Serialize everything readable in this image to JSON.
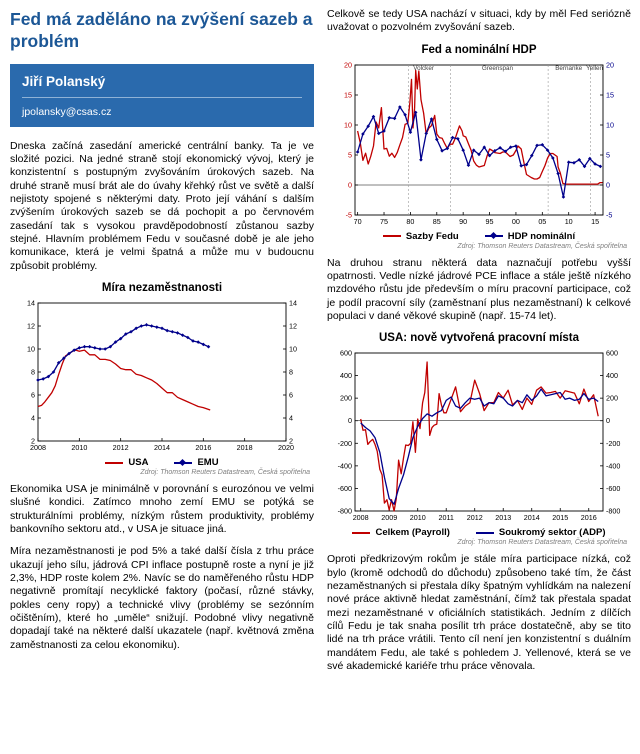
{
  "article": {
    "title": "Fed má zaděláno na zvýšení sazeb a problém",
    "author": {
      "name": "Jiří Polanský",
      "email": "jpolansky@csas.cz"
    }
  },
  "left": {
    "p1": "Dneska začíná zasedání americké centrální banky. Ta je ve složité pozici. Na jedné straně stojí ekonomický vývoj, který je konzistentní s postupným zvyšováním úrokových sazeb. Na druhé straně musí brát ale do úvahy křehký růst ve světě a další nejistoty spojené s některými daty. Proto její váhání s dalším zvýšením úrokových sazeb se dá pochopit a po červnovém zasedání tak s vysokou pravděpodobností zůstanou sazby stejné. Hlavním problémem Fedu v současné době je ale jeho komunikace, která je velmi špatná a může mu v budoucnu způsobit problémy.",
    "p2": "Ekonomika USA je minimálně v porovnání s eurozónou ve velmi slušné kondici. Zatímco mnoho zemí EMU se potýká se strukturálními problémy, nízkým růstem produktivity, problémy bankovního sektoru atd., v USA je situace jiná.",
    "p3": "Míra nezaměstnanosti je pod 5% a také další čísla z trhu práce ukazují jeho sílu, jádrová CPI inflace postupně roste a nyní je již 2,3%, HDP roste kolem 2%. Navíc se do naměřeného růstu HDP negativně promítají necyklické faktory (počasí, různé stávky, pokles ceny ropy) a technické vlivy (problémy se sezónním očištěním), které ho „uměle“ snižují. Podobné vlivy negativně dopadají také na některé další ukazatele (např. květnová změna zaměstnanosti za celou ekonomiku)."
  },
  "right": {
    "p1": "Celkově se tedy USA nachází v situaci, kdy by měl Fed seriózně uvažovat o pozvolném zvyšování sazeb.",
    "p2": "Na druhou stranu některá data naznačují potřebu vyšší opatrnosti. Vedle nízké jádrové PCE inflace a stále ještě nízkého mzdového růstu jde především o míru pracovní participace, což je podíl pracovní síly (zaměstnaní plus nezaměstnaní) k celkové populaci v dané věkové skupině (např. 15-74 let).",
    "p3": "Oproti předkrizovým rokům je stále míra participace nízká, což bylo (kromě odchodů do důchodu) způsobeno také tím, že část nezaměstnaných si přestala díky špatným vyhlídkám na nalezení nové práce aktivně hledat zaměstnání, čímž tak přestala spadat mezi nezaměstnané v oficiálních statistikách. Jedním z dílčích cílů Fedu je tak snaha posílit trh práce dostatečně, aby se tito lidé na trh práce vrátili. Tento cíl není jen konzistentní s duálním mandátem Fedu, ale také s pohledem J. Yellenové, která se ve své akademické kariéře trhu práce věnovala."
  },
  "chart_data": [
    {
      "type": "line",
      "title": "Míra nezaměstnanosti",
      "source": "Zdroj: Thomson Reuters Datastream, Česká spořitelna",
      "xlim": [
        2008,
        2020
      ],
      "ylim": [
        2,
        14
      ],
      "xticks": [
        2008,
        2010,
        2012,
        2014,
        2016,
        2018,
        2020
      ],
      "xtick_labels": [
        "2008",
        "2010",
        "2012",
        "2014",
        "2016",
        "2018",
        "2020"
      ],
      "yticks": [
        2,
        4,
        6,
        8,
        10,
        12,
        14
      ],
      "grid": false,
      "legend_position": "bottom",
      "series": [
        {
          "name": "USA",
          "color": "#c00000",
          "marker": "none",
          "x": [
            2008.0,
            2008.17,
            2008.33,
            2008.5,
            2008.67,
            2008.83,
            2009.0,
            2009.17,
            2009.33,
            2009.5,
            2009.67,
            2009.83,
            2010.0,
            2010.25,
            2010.5,
            2010.75,
            2011.0,
            2011.25,
            2011.5,
            2011.75,
            2012.0,
            2012.25,
            2012.5,
            2012.75,
            2013.0,
            2013.25,
            2013.5,
            2013.75,
            2014.0,
            2014.25,
            2014.5,
            2014.75,
            2015.0,
            2015.25,
            2015.5,
            2015.75,
            2016.0,
            2016.33
          ],
          "y": [
            5.0,
            5.1,
            5.4,
            5.8,
            6.2,
            6.8,
            7.8,
            8.7,
            9.4,
            9.6,
            9.8,
            9.9,
            9.8,
            9.9,
            9.5,
            9.5,
            9.1,
            9.1,
            9.0,
            8.7,
            8.3,
            8.2,
            8.2,
            7.8,
            7.7,
            7.5,
            7.3,
            7.0,
            6.6,
            6.2,
            6.2,
            5.8,
            5.6,
            5.4,
            5.2,
            5.0,
            4.9,
            4.7
          ]
        },
        {
          "name": "EMU",
          "color": "#00008b",
          "marker": "diamond",
          "x": [
            2008.0,
            2008.25,
            2008.5,
            2008.75,
            2009.0,
            2009.25,
            2009.5,
            2009.75,
            2010.0,
            2010.25,
            2010.5,
            2010.75,
            2011.0,
            2011.25,
            2011.5,
            2011.75,
            2012.0,
            2012.25,
            2012.5,
            2012.75,
            2013.0,
            2013.25,
            2013.5,
            2013.75,
            2014.0,
            2014.25,
            2014.5,
            2014.75,
            2015.0,
            2015.25,
            2015.5,
            2015.75,
            2016.0,
            2016.25
          ],
          "y": [
            7.3,
            7.4,
            7.6,
            8.0,
            8.8,
            9.2,
            9.6,
            9.9,
            10.1,
            10.2,
            10.2,
            10.1,
            10.0,
            10.0,
            10.2,
            10.6,
            10.9,
            11.3,
            11.5,
            11.8,
            12.0,
            12.1,
            12.0,
            11.9,
            11.8,
            11.6,
            11.5,
            11.4,
            11.2,
            11.0,
            10.7,
            10.6,
            10.4,
            10.2
          ]
        }
      ]
    },
    {
      "type": "line",
      "title": "Fed a nominální HDP",
      "source": "Zdroj: Thomson Reuters Datastream, Česká spořitelna",
      "xlim": [
        1969.5,
        2016.5
      ],
      "ylim": [
        -5,
        20
      ],
      "xticks": [
        1970,
        1975,
        1980,
        1985,
        1990,
        1995,
        2000,
        2005,
        2010,
        2015
      ],
      "xtick_labels": [
        "70",
        "75",
        "80",
        "85",
        "90",
        "95",
        "00",
        "05",
        "10",
        "15"
      ],
      "yticks": [
        -5,
        0,
        5,
        10,
        15,
        20
      ],
      "left_axis_color": "#c00000",
      "right_axis_color": "#00008b",
      "zero_line": true,
      "vlines": [
        1979.6,
        1987.6,
        2006.1,
        2014.1
      ],
      "annotations": [
        {
          "text": "Volcker",
          "x": 1982.5,
          "y": 19.2
        },
        {
          "text": "Greenspan",
          "x": 1996.5,
          "y": 19.2
        },
        {
          "text": "Bernanke",
          "x": 2010.0,
          "y": 19.2
        },
        {
          "text": "Yellen",
          "x": 2014.9,
          "y": 19.2
        }
      ],
      "series": [
        {
          "name": "Sazby Fedu",
          "color": "#c00000",
          "marker": "none",
          "x": [
            1970.0,
            1970.5,
            1971.0,
            1971.5,
            1972.0,
            1972.5,
            1973.0,
            1973.5,
            1974.0,
            1974.5,
            1975.0,
            1975.5,
            1976.0,
            1976.5,
            1977.0,
            1977.5,
            1978.0,
            1978.5,
            1979.0,
            1979.5,
            1979.9,
            1980.2,
            1980.5,
            1980.8,
            1981.0,
            1981.3,
            1981.6,
            1982.0,
            1982.5,
            1983.0,
            1983.5,
            1984.0,
            1984.6,
            1985.0,
            1985.5,
            1986.0,
            1986.5,
            1987.0,
            1987.5,
            1988.0,
            1988.5,
            1989.0,
            1989.3,
            1989.8,
            1990.0,
            1990.5,
            1991.0,
            1991.5,
            1992.0,
            1992.5,
            1993.0,
            1994.0,
            1994.5,
            1995.0,
            1995.5,
            1996.0,
            1997.0,
            1997.5,
            1998.0,
            1998.9,
            1999.5,
            2000.0,
            2000.4,
            2001.0,
            2001.5,
            2002.0,
            2002.9,
            2003.5,
            2004.0,
            2004.5,
            2005.0,
            2005.5,
            2006.0,
            2006.5,
            2007.0,
            2007.8,
            2008.0,
            2008.4,
            2008.9,
            2009.5,
            2010.5,
            2011.5,
            2012.5,
            2013.5,
            2014.5,
            2015.5,
            2015.95,
            2016.4
          ],
          "y": [
            9.0,
            7.0,
            4.1,
            5.3,
            3.5,
            4.8,
            6.5,
            10.5,
            9.5,
            12.9,
            6.0,
            6.1,
            4.8,
            5.3,
            4.6,
            5.4,
            6.7,
            7.9,
            10.1,
            10.3,
            13.8,
            17.6,
            9.5,
            12.8,
            19.1,
            16.0,
            19.0,
            14.2,
            12.0,
            8.5,
            9.5,
            9.9,
            11.6,
            8.5,
            7.9,
            7.8,
            6.9,
            6.1,
            6.8,
            6.8,
            7.8,
            9.1,
            9.85,
            9.0,
            8.2,
            8.0,
            6.9,
            5.8,
            4.0,
            3.3,
            3.0,
            3.25,
            4.75,
            6.0,
            5.75,
            5.4,
            5.25,
            5.5,
            5.5,
            4.75,
            5.0,
            5.75,
            6.5,
            6.0,
            3.75,
            1.75,
            1.25,
            1.0,
            1.0,
            1.25,
            2.25,
            3.25,
            4.5,
            5.25,
            5.25,
            4.75,
            3.0,
            2.0,
            0.25,
            0.15,
            0.15,
            0.15,
            0.15,
            0.15,
            0.15,
            0.15,
            0.4,
            0.4
          ]
        },
        {
          "name": "HDP nominální",
          "color": "#00008b",
          "marker": "diamond",
          "x": [
            1970,
            1971,
            1972,
            1973,
            1974,
            1975,
            1976,
            1977,
            1978,
            1979,
            1980,
            1981,
            1982,
            1983,
            1984,
            1985,
            1986,
            1987,
            1988,
            1989,
            1990,
            1991,
            1992,
            1993,
            1994,
            1995,
            1996,
            1997,
            1998,
            1999,
            2000,
            2001,
            2002,
            2003,
            2004,
            2005,
            2006,
            2007,
            2008,
            2009,
            2010,
            2011,
            2012,
            2013,
            2014,
            2015,
            2016
          ],
          "y": [
            5.5,
            8.5,
            9.8,
            11.4,
            8.6,
            9.0,
            11.2,
            11.1,
            13.0,
            11.7,
            8.8,
            12.1,
            4.2,
            8.6,
            11.0,
            7.6,
            5.7,
            6.1,
            7.9,
            7.7,
            5.8,
            3.3,
            5.8,
            5.1,
            6.3,
            4.9,
            5.7,
            6.2,
            5.6,
            6.3,
            6.5,
            3.2,
            3.4,
            4.9,
            6.6,
            6.7,
            5.8,
            4.5,
            1.9,
            -2.0,
            3.8,
            3.7,
            4.2,
            3.1,
            4.4,
            3.5,
            3.1
          ]
        }
      ]
    },
    {
      "type": "line",
      "title": "USA: nově vytvořená pracovní místa",
      "source": "Zdroj: Thomson Reuters Datastream, Česká spořitelna",
      "xlim": [
        2007.8,
        2016.5
      ],
      "ylim": [
        -800,
        600
      ],
      "xticks": [
        2008,
        2009,
        2010,
        2011,
        2012,
        2013,
        2014,
        2015,
        2016
      ],
      "xtick_labels": [
        "2008",
        "2009",
        "2010",
        "2011",
        "2012",
        "2013",
        "2014",
        "2015",
        "2016"
      ],
      "yticks": [
        -800,
        -600,
        -400,
        -200,
        0,
        200,
        400,
        600
      ],
      "zero_line": true,
      "series": [
        {
          "name": "Celkem (Payroll)",
          "color": "#c00000",
          "marker": "none",
          "x": [
            2008.0,
            2008.08,
            2008.17,
            2008.25,
            2008.33,
            2008.42,
            2008.5,
            2008.58,
            2008.67,
            2008.75,
            2008.83,
            2008.92,
            2009.0,
            2009.08,
            2009.17,
            2009.25,
            2009.33,
            2009.42,
            2009.5,
            2009.58,
            2009.67,
            2009.75,
            2009.83,
            2009.92,
            2010.0,
            2010.08,
            2010.17,
            2010.25,
            2010.33,
            2010.42,
            2010.5,
            2010.58,
            2010.67,
            2010.75,
            2010.83,
            2010.92,
            2011.0,
            2011.17,
            2011.33,
            2011.5,
            2011.67,
            2011.83,
            2012.0,
            2012.17,
            2012.33,
            2012.5,
            2012.67,
            2012.83,
            2013.0,
            2013.17,
            2013.33,
            2013.5,
            2013.67,
            2013.83,
            2014.0,
            2014.17,
            2014.33,
            2014.5,
            2014.67,
            2014.83,
            2015.0,
            2015.17,
            2015.33,
            2015.5,
            2015.67,
            2015.83,
            2016.0,
            2016.17,
            2016.33
          ],
          "y": [
            15,
            -85,
            -80,
            -210,
            -185,
            -165,
            -210,
            -270,
            -430,
            -480,
            -730,
            -700,
            -790,
            -700,
            -800,
            -690,
            -350,
            -470,
            -330,
            -215,
            -220,
            -200,
            -10,
            -280,
            15,
            -70,
            160,
            250,
            520,
            -130,
            -60,
            -40,
            -30,
            240,
            140,
            70,
            70,
            190,
            300,
            80,
            130,
            160,
            360,
            240,
            90,
            160,
            160,
            250,
            200,
            270,
            140,
            180,
            100,
            200,
            145,
            270,
            300,
            245,
            250,
            260,
            200,
            265,
            255,
            245,
            150,
            280,
            170,
            230,
            40
          ]
        },
        {
          "name": "Soukromý sektor (ADP)",
          "color": "#00008b",
          "marker": "none",
          "x": [
            2008.0,
            2008.17,
            2008.33,
            2008.5,
            2008.67,
            2008.83,
            2009.0,
            2009.17,
            2009.33,
            2009.5,
            2009.67,
            2009.83,
            2010.0,
            2010.17,
            2010.33,
            2010.5,
            2010.67,
            2010.83,
            2011.0,
            2011.17,
            2011.33,
            2011.5,
            2011.67,
            2011.83,
            2012.0,
            2012.17,
            2012.33,
            2012.5,
            2012.67,
            2012.83,
            2013.0,
            2013.17,
            2013.33,
            2013.5,
            2013.67,
            2013.83,
            2014.0,
            2014.17,
            2014.33,
            2014.5,
            2014.67,
            2014.83,
            2015.0,
            2015.17,
            2015.33,
            2015.5,
            2015.67,
            2015.83,
            2016.0,
            2016.17,
            2016.33
          ],
          "y": [
            -20,
            -60,
            -90,
            -150,
            -280,
            -500,
            -690,
            -740,
            -600,
            -480,
            -320,
            -150,
            -50,
            20,
            60,
            40,
            70,
            90,
            180,
            210,
            130,
            110,
            160,
            200,
            190,
            200,
            130,
            160,
            150,
            220,
            200,
            150,
            130,
            180,
            160,
            230,
            180,
            220,
            280,
            220,
            230,
            240,
            250,
            190,
            200,
            180,
            190,
            240,
            190,
            200,
            170
          ]
        }
      ]
    }
  ]
}
